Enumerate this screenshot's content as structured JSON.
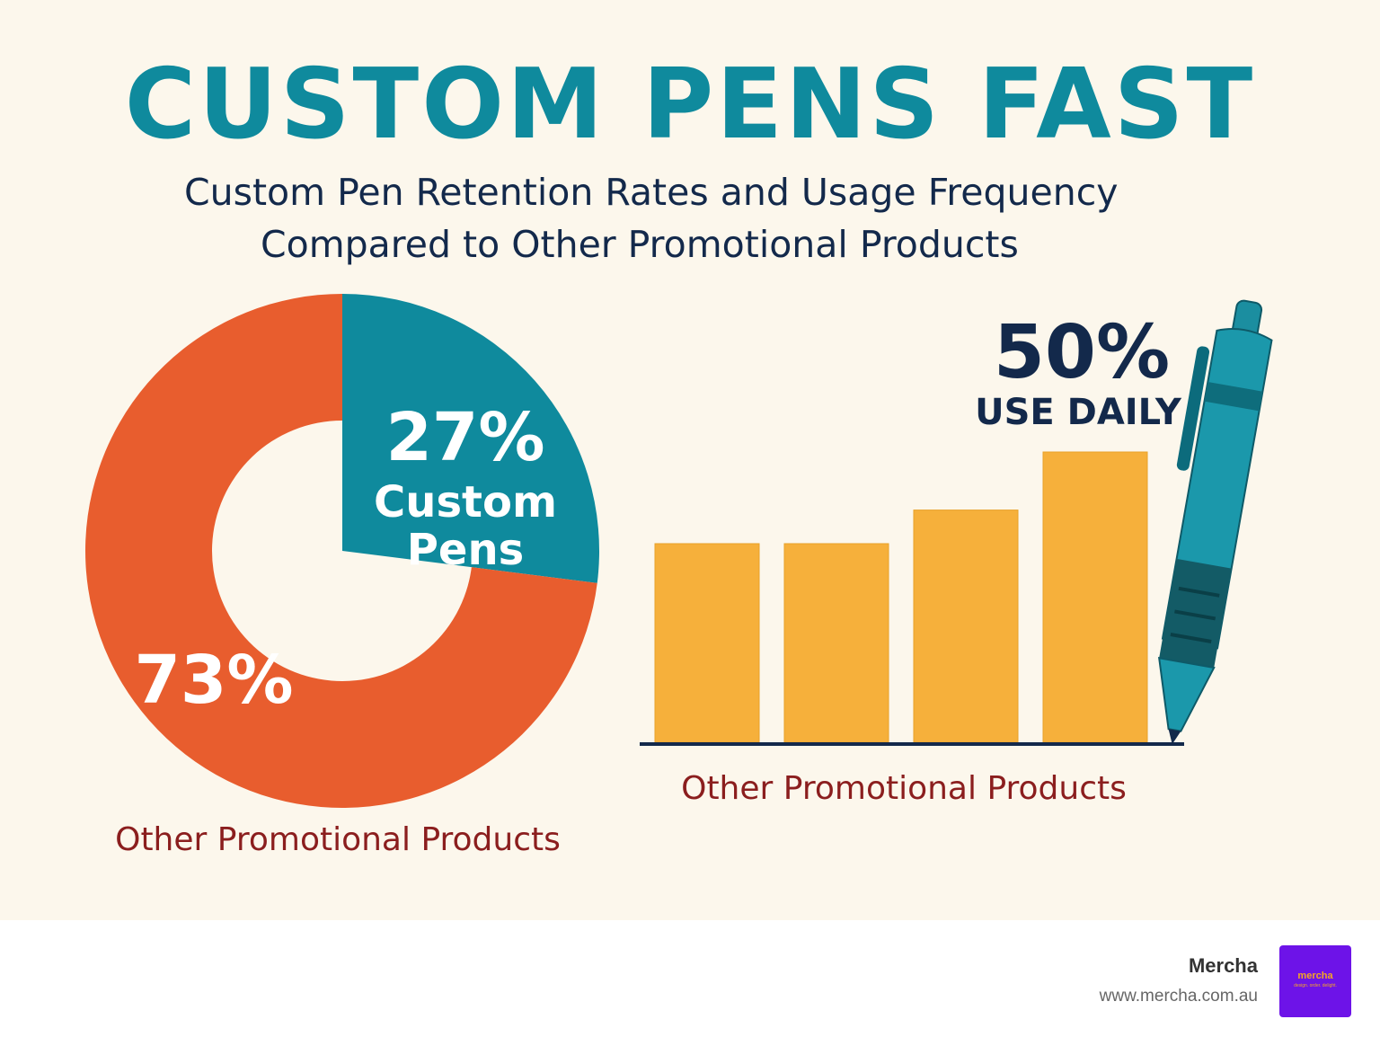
{
  "title": "CUSTOM PENS FAST",
  "subtitle_line1": "Custom Pen Retention Rates and Usage Frequency",
  "subtitle_line2": "Compared to Other Promotional Products",
  "colors": {
    "background": "#fcf7ec",
    "title": "#0f8a9d",
    "subtitle": "#13294b",
    "teal": "#0f8a9d",
    "orange": "#e85d2e",
    "bar": "#f6b03b",
    "caption": "#8b1e1e",
    "navy": "#13294b"
  },
  "chart_data": [
    {
      "type": "pie",
      "style": "donut",
      "slices": [
        {
          "label": "Custom Pens",
          "value": 27,
          "value_label": "27%",
          "label_lines": [
            "Custom",
            "Pens"
          ],
          "color": "#0f8a9d"
        },
        {
          "label": "Other Promotional Products",
          "value": 73,
          "value_label": "73%",
          "color": "#e85d2e"
        }
      ],
      "caption": "Other Promotional Products"
    },
    {
      "type": "bar",
      "values": [
        65,
        65,
        76,
        95
      ],
      "bar_color": "#f6b03b",
      "ylim": [
        0,
        100
      ],
      "caption": "Other Promotional Products",
      "callout": {
        "value": "50%",
        "text": "USE DAILY"
      }
    }
  ],
  "footer": {
    "brand": "Mercha",
    "url": "www.mercha.com.au",
    "logo_word": "mercha",
    "logo_tagline": "design. order. delight."
  }
}
